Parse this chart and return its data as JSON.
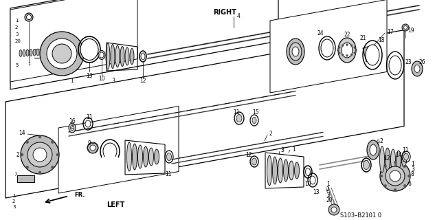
{
  "background_color": "#ffffff",
  "line_color": "#1a1a1a",
  "label_RIGHT": "RIGHT",
  "label_LEFT": "LEFT",
  "label_FR": "FR.",
  "catalog_number": "S103–B2101 0",
  "fig_width": 6.33,
  "fig_height": 3.2,
  "dpi": 100,
  "gray_dark": "#555555",
  "gray_mid": "#888888",
  "gray_light": "#bbbbbb",
  "gray_fill": "#cccccc",
  "gray_part": "#999999"
}
